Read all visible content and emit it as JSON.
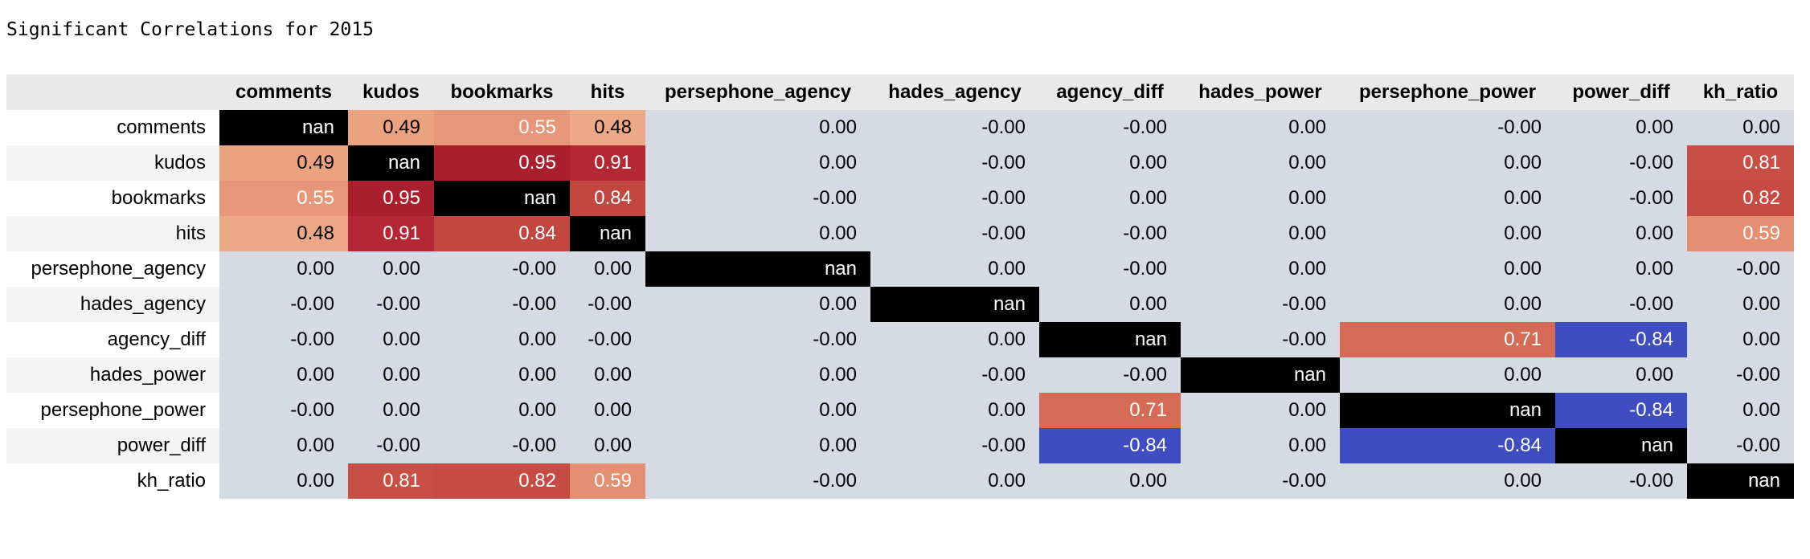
{
  "title": "Significant Correlations for 2015",
  "colors": {
    "neutral": "#d6dae4",
    "nan": "#000000",
    "light_red": "#eaa282",
    "salmon": "#e99a7e",
    "orange_red": "#e8946d",
    "coral": "#de7c5f",
    "brick": "#d1685a",
    "red": "#c24741",
    "red2": "#c54e43",
    "dark_red": "#b22a37",
    "dark_red2": "#aa1f2e",
    "blue": "#3f4dc0"
  },
  "table": {
    "columns": [
      "comments",
      "kudos",
      "bookmarks",
      "hits",
      "persephone_agency",
      "hades_agency",
      "agency_diff",
      "hades_power",
      "persephone_power",
      "power_diff",
      "kh_ratio"
    ],
    "rows": [
      {
        "label": "comments",
        "cells": [
          {
            "v": "nan",
            "bg": "#000000",
            "fg": "#ffffff"
          },
          {
            "v": "0.49",
            "bg": "#eba27f",
            "fg": "#000000"
          },
          {
            "v": "0.55",
            "bg": "#e7967a",
            "fg": "#ffffff"
          },
          {
            "v": "0.48",
            "bg": "#eda885",
            "fg": "#000000"
          },
          {
            "v": "0.00",
            "bg": "#d6dae4",
            "fg": "#000000"
          },
          {
            "v": "-0.00",
            "bg": "#d6dae4",
            "fg": "#000000"
          },
          {
            "v": "-0.00",
            "bg": "#d6dae4",
            "fg": "#000000"
          },
          {
            "v": "0.00",
            "bg": "#d6dae4",
            "fg": "#000000"
          },
          {
            "v": "-0.00",
            "bg": "#d6dae4",
            "fg": "#000000"
          },
          {
            "v": "0.00",
            "bg": "#d6dae4",
            "fg": "#000000"
          },
          {
            "v": "0.00",
            "bg": "#d6dae4",
            "fg": "#000000"
          }
        ]
      },
      {
        "label": "kudos",
        "cells": [
          {
            "v": "0.49",
            "bg": "#eba27f",
            "fg": "#000000"
          },
          {
            "v": "nan",
            "bg": "#000000",
            "fg": "#ffffff"
          },
          {
            "v": "0.95",
            "bg": "#aa1f2e",
            "fg": "#ffffff"
          },
          {
            "v": "0.91",
            "bg": "#b42836",
            "fg": "#ffffff"
          },
          {
            "v": "0.00",
            "bg": "#d6dae4",
            "fg": "#000000"
          },
          {
            "v": "-0.00",
            "bg": "#d6dae4",
            "fg": "#000000"
          },
          {
            "v": "0.00",
            "bg": "#d6dae4",
            "fg": "#000000"
          },
          {
            "v": "0.00",
            "bg": "#d6dae4",
            "fg": "#000000"
          },
          {
            "v": "0.00",
            "bg": "#d6dae4",
            "fg": "#000000"
          },
          {
            "v": "-0.00",
            "bg": "#d6dae4",
            "fg": "#000000"
          },
          {
            "v": "0.81",
            "bg": "#c84f45",
            "fg": "#ffffff"
          }
        ]
      },
      {
        "label": "bookmarks",
        "cells": [
          {
            "v": "0.55",
            "bg": "#e7967a",
            "fg": "#ffffff"
          },
          {
            "v": "0.95",
            "bg": "#aa1f2e",
            "fg": "#ffffff"
          },
          {
            "v": "nan",
            "bg": "#000000",
            "fg": "#ffffff"
          },
          {
            "v": "0.84",
            "bg": "#c24741",
            "fg": "#ffffff"
          },
          {
            "v": "-0.00",
            "bg": "#d6dae4",
            "fg": "#000000"
          },
          {
            "v": "-0.00",
            "bg": "#d6dae4",
            "fg": "#000000"
          },
          {
            "v": "0.00",
            "bg": "#d6dae4",
            "fg": "#000000"
          },
          {
            "v": "0.00",
            "bg": "#d6dae4",
            "fg": "#000000"
          },
          {
            "v": "0.00",
            "bg": "#d6dae4",
            "fg": "#000000"
          },
          {
            "v": "-0.00",
            "bg": "#d6dae4",
            "fg": "#000000"
          },
          {
            "v": "0.82",
            "bg": "#c64c43",
            "fg": "#ffffff"
          }
        ]
      },
      {
        "label": "hits",
        "cells": [
          {
            "v": "0.48",
            "bg": "#eda885",
            "fg": "#000000"
          },
          {
            "v": "0.91",
            "bg": "#b42836",
            "fg": "#ffffff"
          },
          {
            "v": "0.84",
            "bg": "#c24741",
            "fg": "#ffffff"
          },
          {
            "v": "nan",
            "bg": "#000000",
            "fg": "#ffffff"
          },
          {
            "v": "0.00",
            "bg": "#d6dae4",
            "fg": "#000000"
          },
          {
            "v": "-0.00",
            "bg": "#d6dae4",
            "fg": "#000000"
          },
          {
            "v": "-0.00",
            "bg": "#d6dae4",
            "fg": "#000000"
          },
          {
            "v": "0.00",
            "bg": "#d6dae4",
            "fg": "#000000"
          },
          {
            "v": "0.00",
            "bg": "#d6dae4",
            "fg": "#000000"
          },
          {
            "v": "0.00",
            "bg": "#d6dae4",
            "fg": "#000000"
          },
          {
            "v": "0.59",
            "bg": "#e48f71",
            "fg": "#ffffff"
          }
        ]
      },
      {
        "label": "persephone_agency",
        "cells": [
          {
            "v": "0.00",
            "bg": "#d6dae4",
            "fg": "#000000"
          },
          {
            "v": "0.00",
            "bg": "#d6dae4",
            "fg": "#000000"
          },
          {
            "v": "-0.00",
            "bg": "#d6dae4",
            "fg": "#000000"
          },
          {
            "v": "0.00",
            "bg": "#d6dae4",
            "fg": "#000000"
          },
          {
            "v": "nan",
            "bg": "#000000",
            "fg": "#ffffff"
          },
          {
            "v": "0.00",
            "bg": "#d6dae4",
            "fg": "#000000"
          },
          {
            "v": "-0.00",
            "bg": "#d6dae4",
            "fg": "#000000"
          },
          {
            "v": "0.00",
            "bg": "#d6dae4",
            "fg": "#000000"
          },
          {
            "v": "0.00",
            "bg": "#d6dae4",
            "fg": "#000000"
          },
          {
            "v": "0.00",
            "bg": "#d6dae4",
            "fg": "#000000"
          },
          {
            "v": "-0.00",
            "bg": "#d6dae4",
            "fg": "#000000"
          }
        ]
      },
      {
        "label": "hades_agency",
        "cells": [
          {
            "v": "-0.00",
            "bg": "#d6dae4",
            "fg": "#000000"
          },
          {
            "v": "-0.00",
            "bg": "#d6dae4",
            "fg": "#000000"
          },
          {
            "v": "-0.00",
            "bg": "#d6dae4",
            "fg": "#000000"
          },
          {
            "v": "-0.00",
            "bg": "#d6dae4",
            "fg": "#000000"
          },
          {
            "v": "0.00",
            "bg": "#d6dae4",
            "fg": "#000000"
          },
          {
            "v": "nan",
            "bg": "#000000",
            "fg": "#ffffff"
          },
          {
            "v": "0.00",
            "bg": "#d6dae4",
            "fg": "#000000"
          },
          {
            "v": "-0.00",
            "bg": "#d6dae4",
            "fg": "#000000"
          },
          {
            "v": "0.00",
            "bg": "#d6dae4",
            "fg": "#000000"
          },
          {
            "v": "-0.00",
            "bg": "#d6dae4",
            "fg": "#000000"
          },
          {
            "v": "0.00",
            "bg": "#d6dae4",
            "fg": "#000000"
          }
        ]
      },
      {
        "label": "agency_diff",
        "cells": [
          {
            "v": "-0.00",
            "bg": "#d6dae4",
            "fg": "#000000"
          },
          {
            "v": "0.00",
            "bg": "#d6dae4",
            "fg": "#000000"
          },
          {
            "v": "0.00",
            "bg": "#d6dae4",
            "fg": "#000000"
          },
          {
            "v": "-0.00",
            "bg": "#d6dae4",
            "fg": "#000000"
          },
          {
            "v": "-0.00",
            "bg": "#d6dae4",
            "fg": "#000000"
          },
          {
            "v": "0.00",
            "bg": "#d6dae4",
            "fg": "#000000"
          },
          {
            "v": "nan",
            "bg": "#000000",
            "fg": "#ffffff"
          },
          {
            "v": "-0.00",
            "bg": "#d6dae4",
            "fg": "#000000"
          },
          {
            "v": "0.71",
            "bg": "#d66b55",
            "fg": "#ffffff"
          },
          {
            "v": "-0.84",
            "bg": "#3f4dc0",
            "fg": "#ffffff"
          },
          {
            "v": "0.00",
            "bg": "#d6dae4",
            "fg": "#000000"
          }
        ]
      },
      {
        "label": "hades_power",
        "cells": [
          {
            "v": "0.00",
            "bg": "#d6dae4",
            "fg": "#000000"
          },
          {
            "v": "0.00",
            "bg": "#d6dae4",
            "fg": "#000000"
          },
          {
            "v": "0.00",
            "bg": "#d6dae4",
            "fg": "#000000"
          },
          {
            "v": "0.00",
            "bg": "#d6dae4",
            "fg": "#000000"
          },
          {
            "v": "0.00",
            "bg": "#d6dae4",
            "fg": "#000000"
          },
          {
            "v": "-0.00",
            "bg": "#d6dae4",
            "fg": "#000000"
          },
          {
            "v": "-0.00",
            "bg": "#d6dae4",
            "fg": "#000000"
          },
          {
            "v": "nan",
            "bg": "#000000",
            "fg": "#ffffff"
          },
          {
            "v": "0.00",
            "bg": "#d6dae4",
            "fg": "#000000"
          },
          {
            "v": "0.00",
            "bg": "#d6dae4",
            "fg": "#000000"
          },
          {
            "v": "-0.00",
            "bg": "#d6dae4",
            "fg": "#000000"
          }
        ]
      },
      {
        "label": "persephone_power",
        "cells": [
          {
            "v": "-0.00",
            "bg": "#d6dae4",
            "fg": "#000000"
          },
          {
            "v": "0.00",
            "bg": "#d6dae4",
            "fg": "#000000"
          },
          {
            "v": "0.00",
            "bg": "#d6dae4",
            "fg": "#000000"
          },
          {
            "v": "0.00",
            "bg": "#d6dae4",
            "fg": "#000000"
          },
          {
            "v": "0.00",
            "bg": "#d6dae4",
            "fg": "#000000"
          },
          {
            "v": "0.00",
            "bg": "#d6dae4",
            "fg": "#000000"
          },
          {
            "v": "0.71",
            "bg": "#d66b55",
            "fg": "#ffffff"
          },
          {
            "v": "0.00",
            "bg": "#d6dae4",
            "fg": "#000000"
          },
          {
            "v": "nan",
            "bg": "#000000",
            "fg": "#ffffff"
          },
          {
            "v": "-0.84",
            "bg": "#3f4dc0",
            "fg": "#ffffff"
          },
          {
            "v": "0.00",
            "bg": "#d6dae4",
            "fg": "#000000"
          }
        ]
      },
      {
        "label": "power_diff",
        "cells": [
          {
            "v": "0.00",
            "bg": "#d6dae4",
            "fg": "#000000"
          },
          {
            "v": "-0.00",
            "bg": "#d6dae4",
            "fg": "#000000"
          },
          {
            "v": "-0.00",
            "bg": "#d6dae4",
            "fg": "#000000"
          },
          {
            "v": "0.00",
            "bg": "#d6dae4",
            "fg": "#000000"
          },
          {
            "v": "0.00",
            "bg": "#d6dae4",
            "fg": "#000000"
          },
          {
            "v": "-0.00",
            "bg": "#d6dae4",
            "fg": "#000000"
          },
          {
            "v": "-0.84",
            "bg": "#3f4dc0",
            "fg": "#ffffff"
          },
          {
            "v": "0.00",
            "bg": "#d6dae4",
            "fg": "#000000"
          },
          {
            "v": "-0.84",
            "bg": "#3f4dc0",
            "fg": "#ffffff"
          },
          {
            "v": "nan",
            "bg": "#000000",
            "fg": "#ffffff"
          },
          {
            "v": "-0.00",
            "bg": "#d6dae4",
            "fg": "#000000"
          }
        ]
      },
      {
        "label": "kh_ratio",
        "cells": [
          {
            "v": "0.00",
            "bg": "#d6dae4",
            "fg": "#000000"
          },
          {
            "v": "0.81",
            "bg": "#c84f45",
            "fg": "#ffffff"
          },
          {
            "v": "0.82",
            "bg": "#c64c43",
            "fg": "#ffffff"
          },
          {
            "v": "0.59",
            "bg": "#e48f71",
            "fg": "#ffffff"
          },
          {
            "v": "-0.00",
            "bg": "#d6dae4",
            "fg": "#000000"
          },
          {
            "v": "0.00",
            "bg": "#d6dae4",
            "fg": "#000000"
          },
          {
            "v": "0.00",
            "bg": "#d6dae4",
            "fg": "#000000"
          },
          {
            "v": "-0.00",
            "bg": "#d6dae4",
            "fg": "#000000"
          },
          {
            "v": "0.00",
            "bg": "#d6dae4",
            "fg": "#000000"
          },
          {
            "v": "-0.00",
            "bg": "#d6dae4",
            "fg": "#000000"
          },
          {
            "v": "nan",
            "bg": "#000000",
            "fg": "#ffffff"
          }
        ]
      }
    ]
  }
}
